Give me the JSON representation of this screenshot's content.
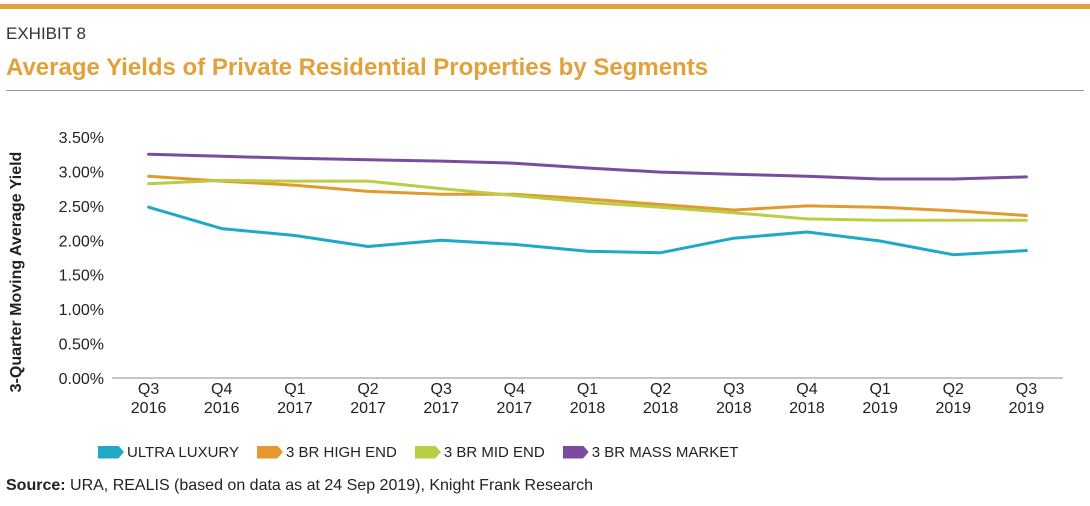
{
  "header": {
    "exhibit": "EXHIBIT 8",
    "title": "Average Yields of Private Residential Properties by Segments"
  },
  "source": {
    "label": "Source:",
    "text": " URA, REALIS (based on data as at 24 Sep 2019), Knight Frank Research"
  },
  "chart_data": {
    "type": "line",
    "title": "",
    "xlabel": "",
    "ylabel": "3-Quarter Moving Average Yield",
    "categories": [
      [
        "Q3",
        "2016"
      ],
      [
        "Q4",
        "2016"
      ],
      [
        "Q1",
        "2017"
      ],
      [
        "Q2",
        "2017"
      ],
      [
        "Q3",
        "2017"
      ],
      [
        "Q4",
        "2017"
      ],
      [
        "Q1",
        "2018"
      ],
      [
        "Q2",
        "2018"
      ],
      [
        "Q3",
        "2018"
      ],
      [
        "Q4",
        "2018"
      ],
      [
        "Q1",
        "2019"
      ],
      [
        "Q2",
        "2019"
      ],
      [
        "Q3",
        "2019"
      ]
    ],
    "ylim": [
      0,
      3.5
    ],
    "yticks": [
      "0.00%",
      "0.50%",
      "1.00%",
      "1.50%",
      "2.00%",
      "2.50%",
      "3.00%",
      "3.50%"
    ],
    "grid": false,
    "legend_position": "bottom",
    "series": [
      {
        "name": "ULTRA LUXURY",
        "color": "#1FA9C9",
        "values": [
          2.48,
          2.17,
          2.07,
          1.91,
          2.0,
          1.94,
          1.84,
          1.82,
          2.03,
          2.12,
          1.99,
          1.79,
          1.85
        ]
      },
      {
        "name": "3 BR HIGH END",
        "color": "#E2992E",
        "values": [
          2.93,
          2.86,
          2.8,
          2.71,
          2.67,
          2.67,
          2.6,
          2.52,
          2.44,
          2.5,
          2.48,
          2.43,
          2.36
        ]
      },
      {
        "name": "3 BR MID END",
        "color": "#B9CE45",
        "values": [
          2.82,
          2.87,
          2.86,
          2.86,
          2.75,
          2.65,
          2.55,
          2.48,
          2.4,
          2.31,
          2.29,
          2.29,
          2.29
        ]
      },
      {
        "name": "3 BR MASS MARKET",
        "color": "#7B4C9E",
        "values": [
          3.25,
          3.22,
          3.19,
          3.17,
          3.15,
          3.12,
          3.05,
          2.99,
          2.96,
          2.93,
          2.89,
          2.89,
          2.92
        ]
      }
    ]
  }
}
